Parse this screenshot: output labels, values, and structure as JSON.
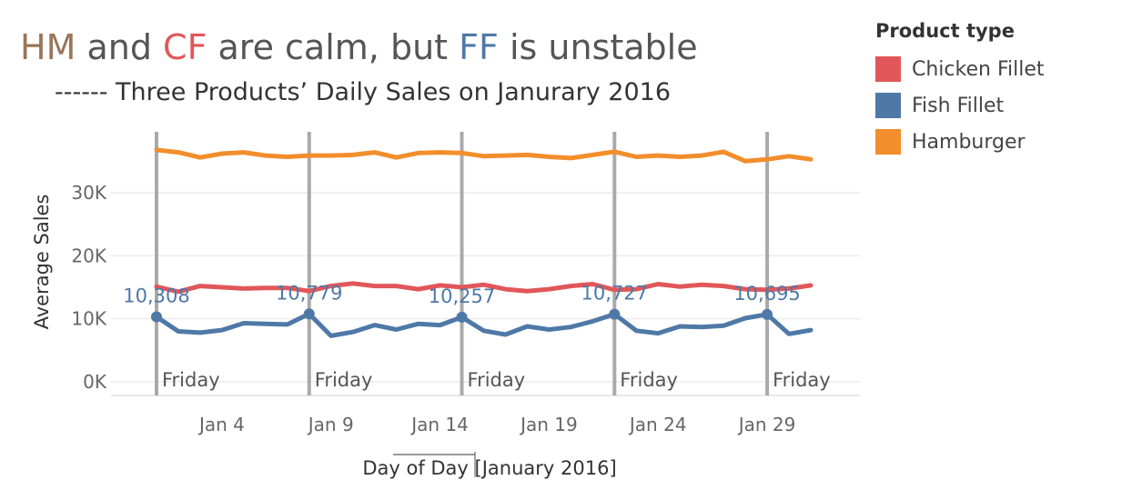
{
  "title": {
    "parts": [
      {
        "text": "HM",
        "color": "#9a7559"
      },
      {
        "text": " and ",
        "color": "#555555"
      },
      {
        "text": "CF",
        "color": "#e15759"
      },
      {
        "text": " are calm, but ",
        "color": "#555555"
      },
      {
        "text": "FF",
        "color": "#4e79a7"
      },
      {
        "text": " is unstable",
        "color": "#555555"
      }
    ]
  },
  "subtitle": "------ Three Products’ Daily Sales on Janurary 2016",
  "legend": {
    "title": "Product type",
    "placement": "right",
    "items": [
      {
        "label": "Chicken Fillet",
        "color": "#e15759"
      },
      {
        "label": "Fish Fillet",
        "color": "#4e79a7"
      },
      {
        "label": "Hamburger",
        "color": "#f28e2b"
      }
    ]
  },
  "chart_data": {
    "type": "line",
    "xlabel": "Day of Day [January 2016]",
    "ylabel": "Average Sales",
    "ylim": [
      0,
      38000
    ],
    "xlim": [
      1,
      31
    ],
    "y_ticks": [
      {
        "value": 0,
        "label": "0K"
      },
      {
        "value": 10000,
        "label": "10K"
      },
      {
        "value": 20000,
        "label": "20K"
      },
      {
        "value": 30000,
        "label": "30K"
      }
    ],
    "x_ticks": [
      {
        "value": 4,
        "label": "Jan 4"
      },
      {
        "value": 9,
        "label": "Jan 9"
      },
      {
        "value": 14,
        "label": "Jan 14"
      },
      {
        "value": 19,
        "label": "Jan 19"
      },
      {
        "value": 24,
        "label": "Jan 24"
      },
      {
        "value": 29,
        "label": "Jan 29"
      }
    ],
    "grid": true,
    "x": [
      1,
      2,
      3,
      4,
      5,
      6,
      7,
      8,
      9,
      10,
      11,
      12,
      13,
      14,
      15,
      16,
      17,
      18,
      19,
      20,
      21,
      22,
      23,
      24,
      25,
      26,
      27,
      28,
      29,
      30,
      31
    ],
    "series": [
      {
        "name": "Hamburger",
        "color": "#f28e2b",
        "values": [
          36800,
          36400,
          35600,
          36200,
          36400,
          35900,
          35700,
          35900,
          35900,
          36000,
          36400,
          35600,
          36300,
          36400,
          36300,
          35800,
          35900,
          36000,
          35700,
          35500,
          36000,
          36500,
          35700,
          35900,
          35700,
          35900,
          36500,
          35000,
          35300,
          35800,
          35300
        ]
      },
      {
        "name": "Chicken Fillet",
        "color": "#e15759",
        "values": [
          15100,
          14300,
          15200,
          15000,
          14800,
          14900,
          14900,
          14400,
          15200,
          15600,
          15200,
          15200,
          14700,
          15300,
          15000,
          15400,
          14700,
          14400,
          14700,
          15200,
          15500,
          14600,
          14700,
          15500,
          15100,
          15400,
          15200,
          14700,
          14600,
          14800,
          15300
        ]
      },
      {
        "name": "Fish Fillet",
        "color": "#4e79a7",
        "values": [
          10308,
          8000,
          7800,
          8200,
          9300,
          9200,
          9100,
          10779,
          7300,
          7900,
          9000,
          8300,
          9200,
          9000,
          10257,
          8100,
          7500,
          8800,
          8300,
          8700,
          9600,
          10727,
          8100,
          7700,
          8800,
          8700,
          8900,
          10100,
          10695,
          7600,
          8200
        ]
      }
    ],
    "reference_lines": [
      {
        "x": 1,
        "label": "Friday"
      },
      {
        "x": 8,
        "label": "Friday"
      },
      {
        "x": 15,
        "label": "Friday"
      },
      {
        "x": 22,
        "label": "Friday"
      },
      {
        "x": 29,
        "label": "Friday"
      }
    ],
    "annotations": [
      {
        "x": 1,
        "y": 10308,
        "label": "10,308"
      },
      {
        "x": 8,
        "y": 10779,
        "label": "10,779"
      },
      {
        "x": 15,
        "y": 10257,
        "label": "10,257"
      },
      {
        "x": 22,
        "y": 10727,
        "label": "10,727"
      },
      {
        "x": 29,
        "y": 10695,
        "label": "10,695"
      }
    ]
  }
}
